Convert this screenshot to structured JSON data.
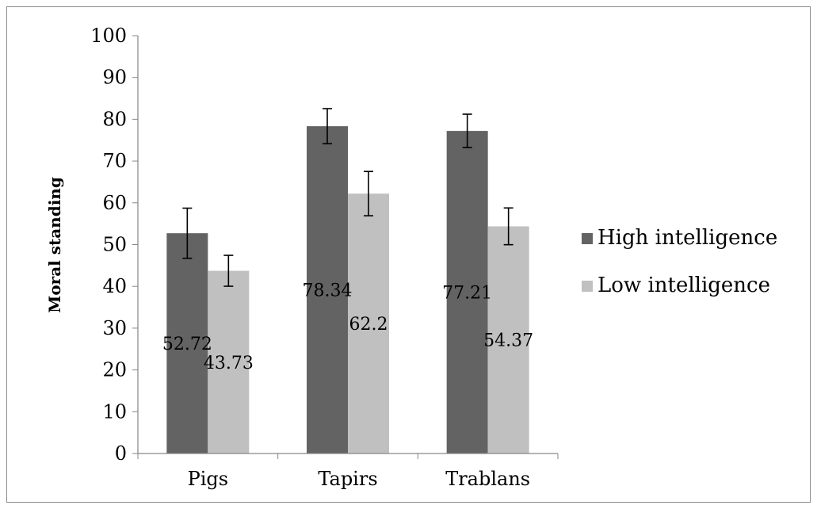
{
  "chart_data": {
    "type": "bar",
    "title": "",
    "xlabel": "",
    "ylabel": "Moral standing",
    "ylim": [
      0,
      100
    ],
    "ytick_step": 10,
    "yticks": [
      "0",
      "10",
      "20",
      "30",
      "40",
      "50",
      "60",
      "70",
      "80",
      "90",
      "100"
    ],
    "grid": false,
    "legend_position": "right",
    "categories": [
      "Pigs",
      "Tapirs",
      "Trablans"
    ],
    "series": [
      {
        "name": "High intelligence",
        "color": "#636363",
        "values": [
          52.72,
          78.34,
          77.21
        ],
        "labels": [
          "52.72",
          "78.34",
          "77.21"
        ],
        "error": [
          6,
          4.2,
          4
        ]
      },
      {
        "name": "Low intelligence",
        "color": "#c0c0c0",
        "values": [
          43.73,
          62.2,
          54.37
        ],
        "labels": [
          "43.73",
          "62.2",
          "54.37"
        ],
        "error": [
          3.7,
          5.3,
          4.4
        ]
      }
    ]
  }
}
